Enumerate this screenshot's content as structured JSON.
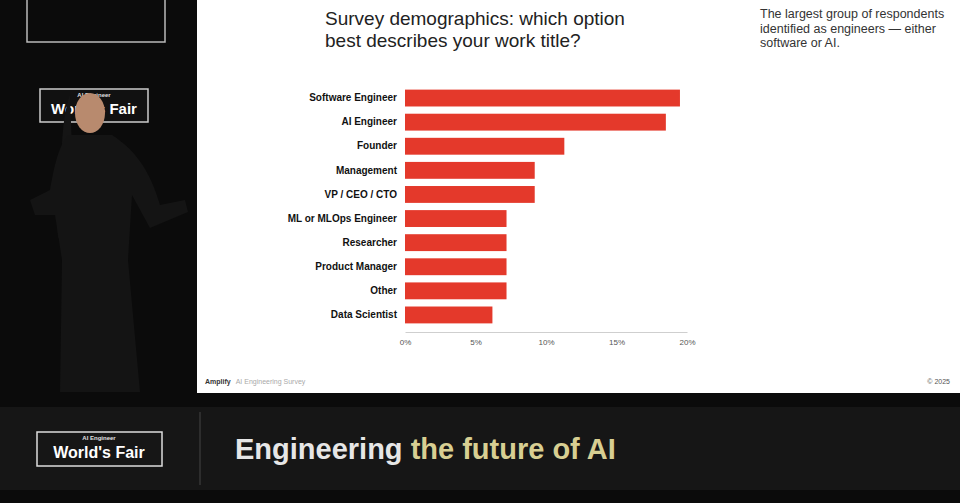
{
  "event": {
    "logo_small": "AI Engineer",
    "logo": "World's Fair",
    "tagline": [
      "Engineering",
      "the future of AI"
    ]
  },
  "chart_data": {
    "type": "bar",
    "orientation": "horizontal",
    "title": "Survey demographics: which option best describes your work title?",
    "annotation": "The largest group of respondents identified as engineers — either software or AI.",
    "source": "Amplify",
    "source_note": "AI Engineering Survey",
    "copyright": "© 2025",
    "categories": [
      "Software Engineer",
      "AI Engineer",
      "Founder",
      "Management",
      "VP / CEO / CTO",
      "ML or MLOps Engineer",
      "Researcher",
      "Product Manager",
      "Other",
      "Data Scientist"
    ],
    "values": [
      19.5,
      18.5,
      11.3,
      9.2,
      9.2,
      7.2,
      7.2,
      7.2,
      7.2,
      6.2
    ],
    "color": "#e4392b",
    "xlim": [
      0,
      20
    ],
    "xticks": [
      {
        "value": 0,
        "label": "0%"
      },
      {
        "value": 5,
        "label": "5%"
      },
      {
        "value": 10,
        "label": "10%"
      },
      {
        "value": 15,
        "label": "15%"
      },
      {
        "value": 20,
        "label": "20%"
      }
    ],
    "grid": false
  }
}
